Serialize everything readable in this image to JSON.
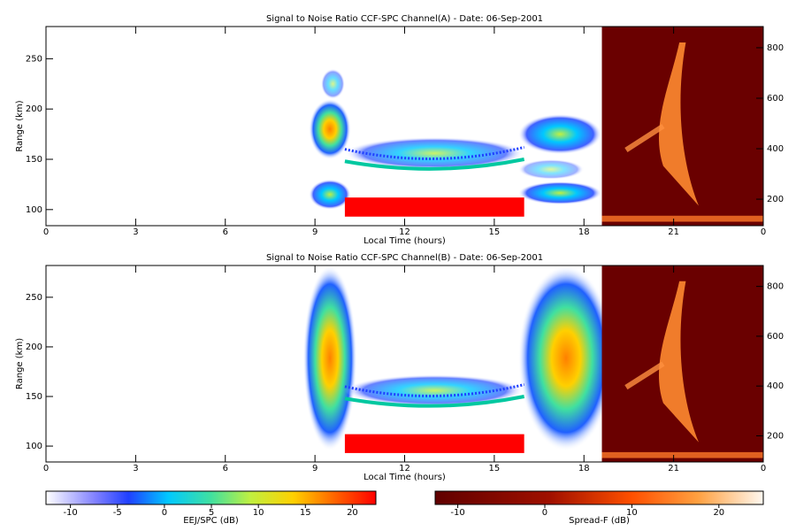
{
  "chart_data": [
    {
      "type": "heatmap",
      "title": "Signal to Noise Ratio CCF-SPC Channel(A) - Date: 06-Sep-2001",
      "xlabel": "Local Time (hours)",
      "ylabel": "Range (km)",
      "xlim": [
        0,
        24
      ],
      "xticks": [
        0,
        3,
        6,
        9,
        12,
        15,
        18,
        21,
        {
          "value": 24,
          "label": "0"
        }
      ],
      "ylim": [
        84,
        282
      ],
      "yticks": [
        100,
        150,
        200,
        250
      ],
      "y2lim": [
        95,
        884
      ],
      "y2ticks": [
        200,
        400,
        600,
        800
      ]
    },
    {
      "type": "heatmap",
      "title": "Signal to Noise Ratio CCF-SPC Channel(B) - Date: 06-Sep-2001",
      "xlabel": "Local Time (hours)",
      "ylabel": "Range (km)",
      "xlim": [
        0,
        24
      ],
      "xticks": [
        0,
        3,
        6,
        9,
        12,
        15,
        18,
        21,
        {
          "value": 24,
          "label": "0"
        }
      ],
      "ylim": [
        84,
        282
      ],
      "yticks": [
        100,
        150,
        200,
        250
      ],
      "y2lim": [
        95,
        884
      ],
      "y2ticks": [
        200,
        400,
        600,
        800
      ]
    }
  ],
  "colorbars": [
    {
      "label": "EEJ/SPC (dB)",
      "lim": [
        -12.6,
        22.5
      ],
      "ticks": [
        -10,
        -5,
        0,
        5,
        10,
        15,
        20
      ]
    },
    {
      "label": "Spread-F (dB)",
      "lim": [
        -12.6,
        25.1
      ],
      "ticks": [
        -10,
        0,
        10,
        20
      ]
    }
  ]
}
